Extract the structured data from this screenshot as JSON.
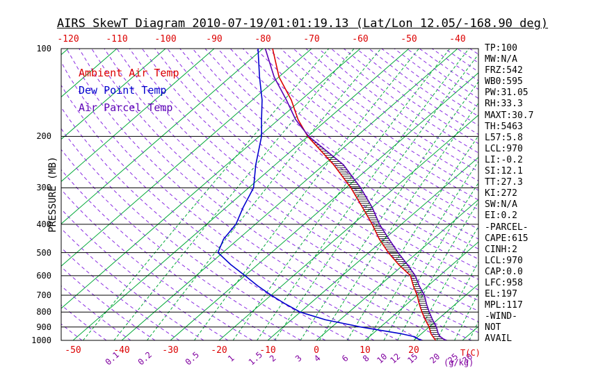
{
  "title": "AIRS SkewT Diagram 2010-07-19/01:01:19.13 (Lat/Lon 12.05/-168.90 deg)",
  "colors": {
    "ambient": "#dc0000",
    "dewpoint": "#0000cd",
    "parcel": "#5a00b4",
    "isotherm": "#00a838",
    "mixing": "#00a838",
    "adiabat": "#8a2be2",
    "mixing_label": "#8000a0",
    "tick_red": "#dc0000",
    "grid": "#000000"
  },
  "legend": [
    {
      "label": "Ambient Air Temp",
      "color": "#dc0000"
    },
    {
      "label": "Dew Point Temp",
      "color": "#0000cd"
    },
    {
      "label": "Air Parcel Temp",
      "color": "#5a00b4"
    }
  ],
  "axes": {
    "y_label": "PRESSURE (MB)",
    "pressure_ticks": [
      100,
      200,
      300,
      400,
      500,
      600,
      700,
      800,
      900,
      1000
    ],
    "top_temp_ticks": [
      -120,
      -110,
      -100,
      -90,
      -80,
      -70,
      -60,
      -50,
      -40
    ],
    "bottom_temp_ticks": [
      -50,
      -40,
      -30,
      -20,
      -10,
      0,
      10,
      20
    ],
    "mixing_ratio_ticks": [
      0.1,
      0.2,
      0.5,
      1,
      1.5,
      2,
      3,
      4,
      6,
      8,
      10,
      12,
      15,
      20,
      25,
      30
    ],
    "temp_unit": "T(C)",
    "mixing_unit": "(g/kg)"
  },
  "stats": [
    "TP:100",
    "MW:N/A",
    "FRZ:542",
    "WB0:595",
    "PW:31.05",
    "RH:33.3",
    "MAXT:30.7",
    "TH:5463",
    "L57:5.8",
    "LCL:970",
    "LI:-0.2",
    "SI:12.1",
    "TT:27.3",
    "KI:272",
    "SW:N/A",
    "EI:0.2",
    "-PARCEL-",
    "CAPE:615",
    "CINH:2",
    "LCL:970",
    "CAP:0.0",
    "LFC:958",
    "EL:197",
    "MPL:117",
    "-WIND-",
    "NOT",
    "AVAIL"
  ],
  "chart_data": {
    "type": "line",
    "title": "AIRS SkewT Diagram 2010-07-19/01:01:19.13",
    "x_axis": {
      "label": "T(C)",
      "range": [
        -120,
        40
      ]
    },
    "y_axis": {
      "label": "PRESSURE (MB)",
      "range": [
        100,
        1000
      ],
      "scale": "log",
      "inverted": true
    },
    "series": [
      {
        "name": "Ambient Air Temp",
        "color": "#dc0000",
        "points": [
          [
            100,
            -78
          ],
          [
            125,
            -70
          ],
          [
            150,
            -62
          ],
          [
            175,
            -56
          ],
          [
            200,
            -50
          ],
          [
            250,
            -38
          ],
          [
            300,
            -29
          ],
          [
            350,
            -22
          ],
          [
            400,
            -16
          ],
          [
            450,
            -11
          ],
          [
            500,
            -6
          ],
          [
            550,
            -1
          ],
          [
            600,
            4
          ],
          [
            650,
            7
          ],
          [
            700,
            10
          ],
          [
            750,
            12.5
          ],
          [
            800,
            15
          ],
          [
            850,
            17.5
          ],
          [
            900,
            20
          ],
          [
            950,
            22
          ],
          [
            970,
            23
          ],
          [
            1000,
            24.5
          ]
        ]
      },
      {
        "name": "Dew Point Temp",
        "color": "#0000cd",
        "points": [
          [
            100,
            -81
          ],
          [
            125,
            -74
          ],
          [
            150,
            -68
          ],
          [
            175,
            -63.5
          ],
          [
            200,
            -59.5
          ],
          [
            250,
            -54
          ],
          [
            300,
            -49
          ],
          [
            350,
            -46.5
          ],
          [
            400,
            -44
          ],
          [
            450,
            -43
          ],
          [
            500,
            -41
          ],
          [
            550,
            -35.5
          ],
          [
            600,
            -30
          ],
          [
            650,
            -25
          ],
          [
            700,
            -20
          ],
          [
            750,
            -15
          ],
          [
            800,
            -10
          ],
          [
            850,
            -3
          ],
          [
            900,
            6
          ],
          [
            950,
            16
          ],
          [
            970,
            19
          ],
          [
            1000,
            21.5
          ]
        ]
      },
      {
        "name": "Air Parcel Temp",
        "color": "#5a00b4",
        "points": [
          [
            100,
            -79.5
          ],
          [
            125,
            -71
          ],
          [
            150,
            -63
          ],
          [
            175,
            -56.5
          ],
          [
            200,
            -49.8
          ],
          [
            250,
            -36
          ],
          [
            300,
            -27
          ],
          [
            350,
            -20
          ],
          [
            400,
            -14.5
          ],
          [
            450,
            -9
          ],
          [
            500,
            -4
          ],
          [
            550,
            0.8
          ],
          [
            600,
            5
          ],
          [
            650,
            8.2
          ],
          [
            700,
            11.5
          ],
          [
            750,
            14
          ],
          [
            800,
            16.5
          ],
          [
            850,
            19
          ],
          [
            900,
            21.5
          ],
          [
            950,
            23.5
          ],
          [
            970,
            24.5
          ],
          [
            1000,
            26.5
          ]
        ]
      }
    ],
    "background": {
      "isotherm_c": {
        "start": -160,
        "end": 40,
        "step": 10
      },
      "mixing_ratio_lines": [
        0.05,
        0.1,
        0.2,
        0.5,
        1,
        1.5,
        2,
        3,
        4,
        6,
        8,
        10,
        12,
        15,
        20,
        25,
        30
      ],
      "dry_adiabats_k": {
        "start": 220,
        "end": 455,
        "step": 5
      }
    },
    "hatch_between": {
      "from_series": "Air Parcel Temp",
      "to_series": "Ambient Air Temp",
      "p_top": 197,
      "p_bottom": 1000
    }
  }
}
